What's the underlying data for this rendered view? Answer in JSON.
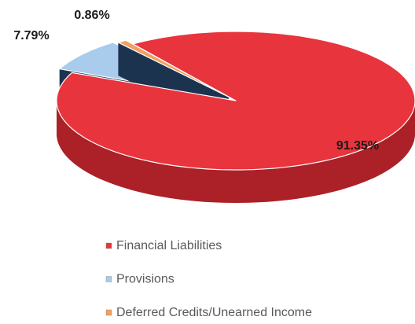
{
  "chart_data": {
    "type": "pie",
    "categories": [
      "Financial Liabilities",
      "Provisions",
      "Deferred Credits/Unearned Income"
    ],
    "values": [
      91.35,
      7.79,
      0.86
    ],
    "value_labels": [
      "91.35%",
      "7.79%",
      "0.86%"
    ],
    "colors": [
      "#e8343c",
      "#a9cbec",
      "#f0a060"
    ],
    "legend": "bottom"
  }
}
